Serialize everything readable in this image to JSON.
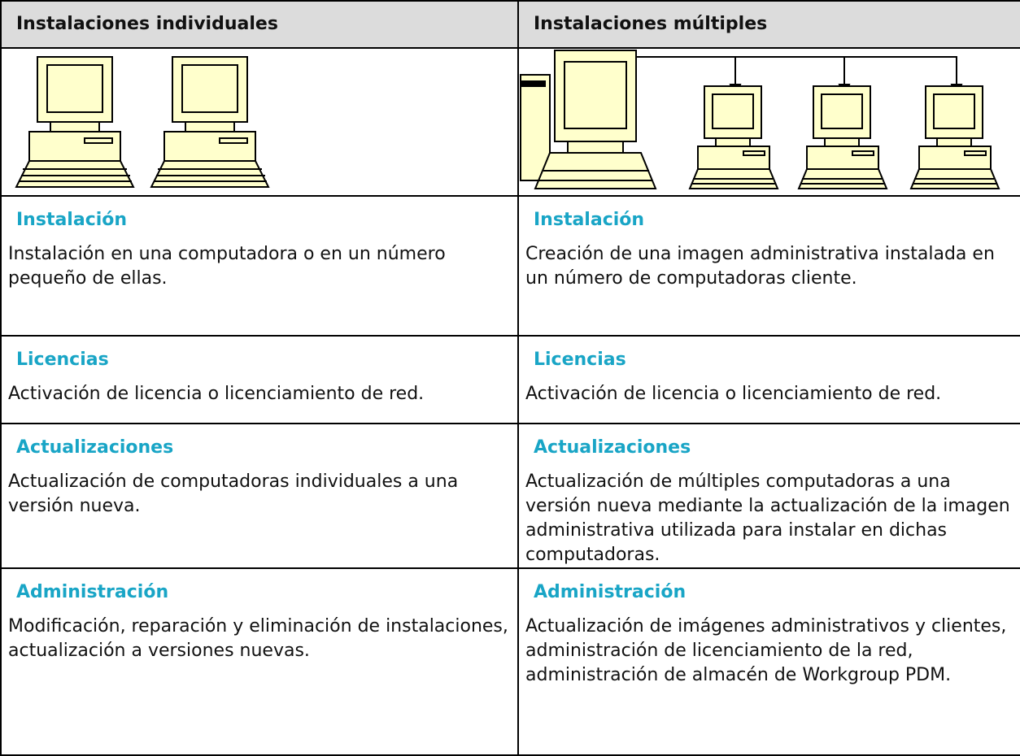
{
  "table": {
    "header": [
      "Instalaciones individuales",
      "Instalaciones múltiples"
    ],
    "rows": [
      [
        {
          "heading": "Instalación",
          "text": "Instalación en una computadora o en un número pequeño de ellas."
        },
        {
          "heading": "Instalación",
          "text": "Creación de una imagen administrativa instalada en un número de computadoras cliente."
        }
      ],
      [
        {
          "heading": "Licencias",
          "text": "Activación de licencia o licenciamiento de red."
        },
        {
          "heading": "Licencias",
          "text": "Activación de licencia o licenciamiento de red."
        }
      ],
      [
        {
          "heading": "Actualizaciones",
          "text": "Actualización de computadoras individuales a una versión nueva."
        },
        {
          "heading": "Actualizaciones",
          "text": "Actualización de múltiples computadoras a una versión nueva mediante la actualización de la imagen administrativa utilizada para instalar en dichas computadoras."
        }
      ],
      [
        {
          "heading": "Administración",
          "text": "Modificación, reparación y eliminación de instalaciones, actualización a versiones nuevas."
        },
        {
          "heading": "Administración",
          "text": "Actualización de imágenes administrativos y clientes, administración de licenciamiento de la red, administración de almacén de Workgroup PDM."
        }
      ]
    ]
  }
}
